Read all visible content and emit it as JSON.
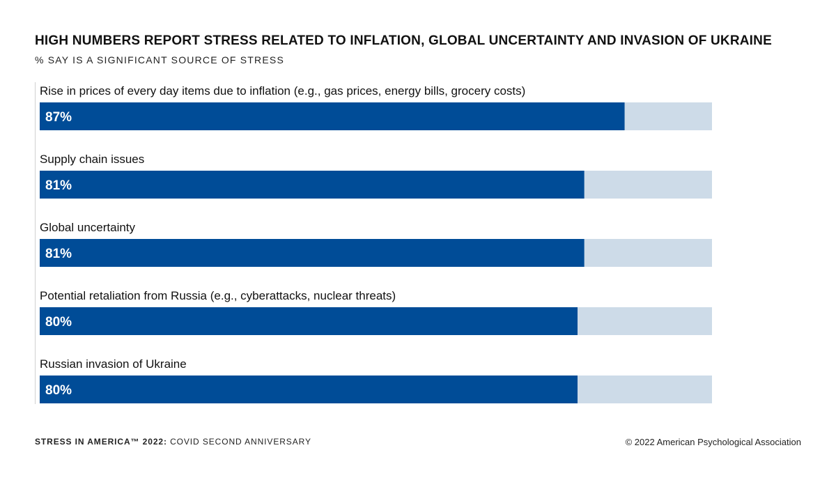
{
  "chart_data": {
    "type": "bar",
    "orientation": "horizontal",
    "title": "HIGH NUMBERS REPORT STRESS RELATED TO INFLATION, GLOBAL UNCERTAINTY AND INVASION OF UKRAINE",
    "subtitle": "% SAY IS A SIGNIFICANT SOURCE OF STRESS",
    "categories": [
      "Rise in prices of every day items due to inflation (e.g., gas prices, energy bills, grocery costs)",
      "Supply chain issues",
      "Global uncertainty",
      "Potential retaliation from Russia (e.g., cyberattacks, nuclear threats)",
      "Russian invasion of Ukraine"
    ],
    "values": [
      87,
      81,
      81,
      80,
      80
    ],
    "value_labels": [
      "87%",
      "81%",
      "81%",
      "80%",
      "80%"
    ],
    "xlim": [
      0,
      100
    ],
    "grid": false,
    "bar_color": "#004c97",
    "track_color": "#cddbe8"
  },
  "footer": {
    "left_strong": "STRESS IN AMERICA™ 2022:",
    "left_rest": " COVID SECOND ANNIVERSARY",
    "right": "© 2022 American Psychological Association"
  }
}
